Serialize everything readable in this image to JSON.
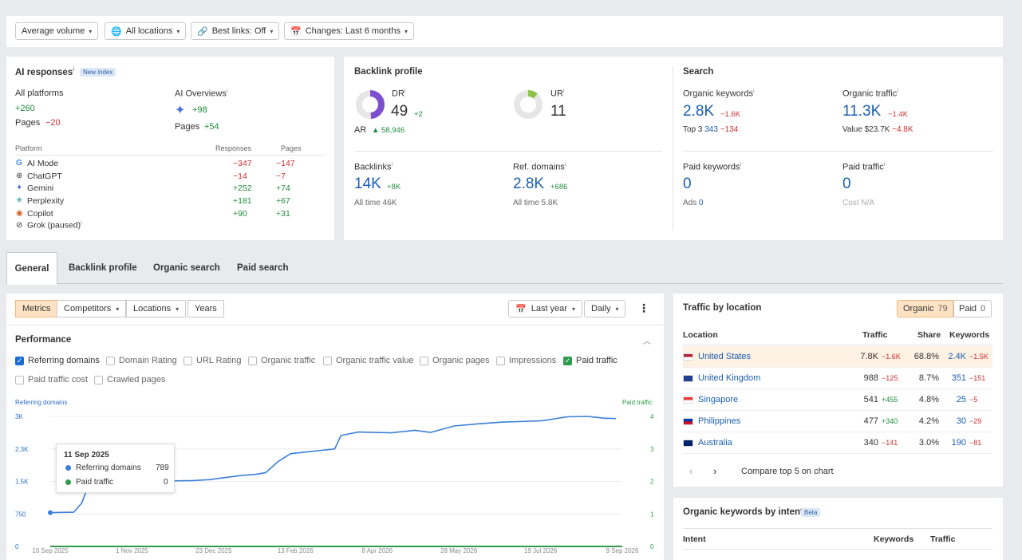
{
  "filters": [
    {
      "label": "Average volume",
      "icon": "none"
    },
    {
      "label": "All locations",
      "icon": "globe-icon"
    },
    {
      "label": "Best links: Off",
      "icon": "link-icon"
    },
    {
      "label": "Changes: Last 6 months",
      "icon": "calendar-icon"
    }
  ],
  "ai": {
    "title": "AI responses",
    "badge": "New index",
    "all_platforms": "All platforms",
    "all_delta": "+260",
    "pages": "Pages",
    "pages_delta": "−20",
    "overviews": "AI Overviews",
    "overviews_delta": "+98",
    "ov_pages": "Pages",
    "ov_pages_delta": "+54",
    "col_platform": "Platform",
    "col_responses": "Responses",
    "col_pages": "Pages",
    "rows": [
      {
        "name": "AI Mode",
        "resp": "−347",
        "pages": "−147"
      },
      {
        "name": "ChatGPT",
        "resp": "−14",
        "pages": "−7"
      },
      {
        "name": "Gemini",
        "resp": "+252",
        "pages": "+74"
      },
      {
        "name": "Perplexity",
        "resp": "+181",
        "pages": "+67"
      },
      {
        "name": "Copilot",
        "resp": "+90",
        "pages": "+31"
      },
      {
        "name": "Grok (paused)",
        "resp": "",
        "pages": ""
      }
    ]
  },
  "backlink": {
    "title": "Backlink profile",
    "dr_label": "DR",
    "dr": "49",
    "dr_delta": "+2",
    "ur_label": "UR",
    "ur": "11",
    "ar_label": "AR",
    "ar": "58,946",
    "backlinks_label": "Backlinks",
    "backlinks": "14K",
    "backlinks_delta": "+8K",
    "backlinks_all": "All time 46K",
    "ref_label": "Ref. domains",
    "ref": "2.8K",
    "ref_delta": "+686",
    "ref_all": "All time 5.8K"
  },
  "search": {
    "title": "Search",
    "ok_label": "Organic keywords",
    "ok": "2.8K",
    "ok_delta": "−1.6K",
    "top3_label": "Top 3",
    "top3": "343",
    "top3_delta": "−134",
    "ot_label": "Organic traffic",
    "ot": "11.3K",
    "ot_delta": "−1.4K",
    "value_label": "Value",
    "value": "$23.7K",
    "value_delta": "−4.8K",
    "pk_label": "Paid keywords",
    "pk": "0",
    "ads_label": "Ads",
    "ads": "0",
    "pt_label": "Paid traffic",
    "pt": "0",
    "cost_label": "Cost",
    "cost": "N/A"
  },
  "tabs": [
    "General",
    "Backlink profile",
    "Organic search",
    "Paid search"
  ],
  "toolbar": {
    "segments": [
      "Metrics",
      "Competitors",
      "Locations",
      "Years"
    ],
    "range": "Last year",
    "interval": "Daily"
  },
  "performance": {
    "title": "Performance",
    "checkboxes": [
      {
        "label": "Referring domains",
        "checked": true,
        "color": "#1a6dd1"
      },
      {
        "label": "Domain Rating",
        "checked": false
      },
      {
        "label": "URL Rating",
        "checked": false
      },
      {
        "label": "Organic traffic",
        "checked": false
      },
      {
        "label": "Organic traffic value",
        "checked": false
      },
      {
        "label": "Organic pages",
        "checked": false
      },
      {
        "label": "Impressions",
        "checked": false
      },
      {
        "label": "Paid traffic",
        "checked": true,
        "color": "#2d9a4f"
      },
      {
        "label": "Paid traffic cost",
        "checked": false
      },
      {
        "label": "Crawled pages",
        "checked": false
      }
    ],
    "tooltip": {
      "date": "11 Sep 2025",
      "rows": [
        {
          "label": "Referring domains",
          "value": "789",
          "color": "#3b7fd8"
        },
        {
          "label": "Paid traffic",
          "value": "0",
          "color": "#2d9a4f"
        }
      ]
    }
  },
  "chart_data": {
    "type": "line",
    "left_axis_label": "Referring domains",
    "right_axis_label": "Paid traffic",
    "left_ticks": [
      "0",
      "750",
      "1.5K",
      "2.3K",
      "3K"
    ],
    "right_ticks": [
      "0",
      "1",
      "2",
      "3",
      "4"
    ],
    "ylim_left": [
      0,
      3000
    ],
    "ylim_right": [
      0,
      4
    ],
    "x_ticks": [
      "10 Sep 2025",
      "1 Nov 2025",
      "23 Dec 2025",
      "13 Feb 2026",
      "8 Apr 2026",
      "28 May 2026",
      "19 Jul 2026",
      "9 Sep 2026"
    ],
    "xlim": [
      "2025-09-10",
      "2026-09-09"
    ],
    "series": [
      {
        "name": "Referring domains",
        "color": "#3b7fd8",
        "x": [
          "2025-09-10",
          "2025-09-25",
          "2025-09-30",
          "2025-10-05",
          "2025-10-20",
          "2025-11-01",
          "2025-11-20",
          "2025-12-10",
          "2025-12-20",
          "2026-01-10",
          "2026-01-18",
          "2026-01-25",
          "2026-02-02",
          "2026-02-10",
          "2026-02-25",
          "2026-03-10",
          "2026-03-14",
          "2026-03-25",
          "2026-04-15",
          "2026-04-30",
          "2026-05-10",
          "2026-05-25",
          "2026-06-10",
          "2026-06-25",
          "2026-07-05",
          "2026-07-20",
          "2026-08-05",
          "2026-08-18",
          "2026-08-28",
          "2026-09-05"
        ],
        "y": [
          780,
          790,
          1000,
          1480,
          1520,
          1520,
          1510,
          1520,
          1540,
          1640,
          1660,
          1700,
          1960,
          2140,
          2200,
          2250,
          2560,
          2640,
          2620,
          2680,
          2630,
          2780,
          2830,
          2870,
          2880,
          2900,
          2990,
          3000,
          2960,
          2950
        ]
      },
      {
        "name": "Paid traffic",
        "color": "#2d9a4f",
        "x": [
          "2025-09-10",
          "2026-09-09"
        ],
        "y": [
          0,
          0
        ]
      }
    ]
  },
  "traffic": {
    "title": "Traffic by location",
    "organic_label": "Organic",
    "organic_count": "79",
    "paid_label": "Paid",
    "paid_count": "0",
    "col_location": "Location",
    "col_traffic": "Traffic",
    "col_share": "Share",
    "col_keywords": "Keywords",
    "rows": [
      {
        "country": "United States",
        "traffic": "7.8K",
        "t_delta": "−1.6K",
        "share": "68.8%",
        "kw": "2.4K",
        "k_delta": "−1.5K",
        "flag": "us"
      },
      {
        "country": "United Kingdom",
        "traffic": "988",
        "t_delta": "−125",
        "share": "8.7%",
        "kw": "351",
        "k_delta": "−151",
        "flag": "uk"
      },
      {
        "country": "Singapore",
        "traffic": "541",
        "t_delta": "+455",
        "share": "4.8%",
        "kw": "25",
        "k_delta": "−5",
        "flag": "sg"
      },
      {
        "country": "Philippines",
        "traffic": "477",
        "t_delta": "+340",
        "share": "4.2%",
        "kw": "30",
        "k_delta": "−29",
        "flag": "ph"
      },
      {
        "country": "Australia",
        "traffic": "340",
        "t_delta": "−141",
        "share": "3.0%",
        "kw": "190",
        "k_delta": "−81",
        "flag": "au"
      }
    ],
    "compare": "Compare top 5 on chart"
  },
  "intent": {
    "title": "Organic keywords by intent",
    "badge": "Beta",
    "col_intent": "Intent",
    "col_keywords": "Keywords",
    "col_traffic": "Traffic"
  }
}
